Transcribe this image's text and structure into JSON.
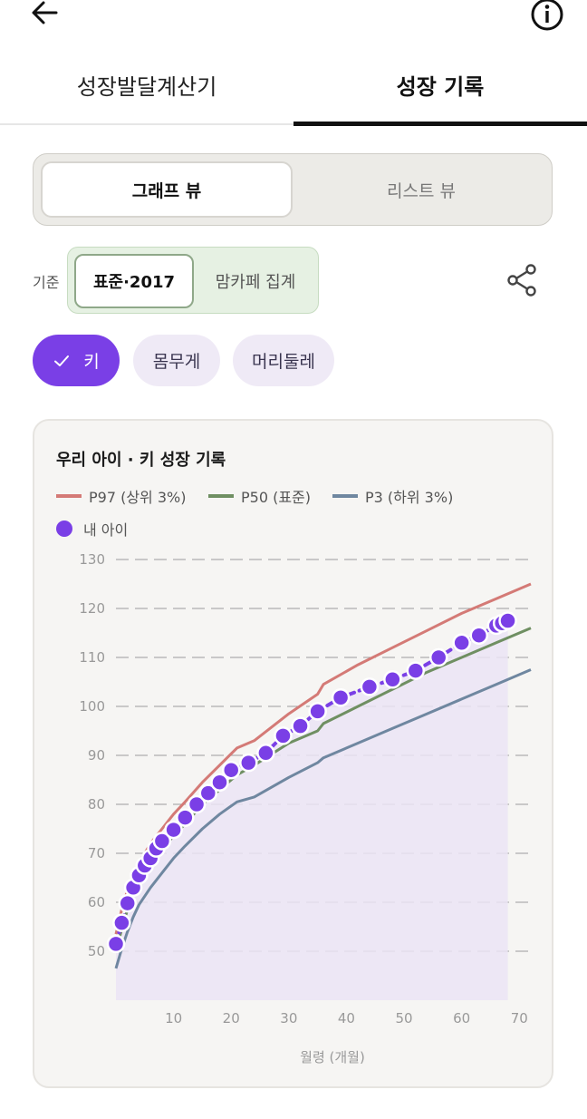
{
  "header": {
    "back_icon": "arrow-left-icon",
    "info_icon": "info-icon"
  },
  "tabs": [
    {
      "label": "성장발달계산기",
      "selected": false
    },
    {
      "label": "성장 기록",
      "selected": true
    }
  ],
  "view_toggle": {
    "graph_label": "그래프 뷰",
    "list_label": "리스트 뷰",
    "selected": "graph"
  },
  "standard": {
    "label": "기준",
    "options": [
      "표준·2017",
      "맘카페 집계"
    ],
    "selected": "표준·2017"
  },
  "metrics": {
    "height": "키",
    "weight": "몸무게",
    "head": "머리둘레",
    "selected": "height"
  },
  "colors": {
    "accent": "#7a3fe6",
    "p97": "#d47a76",
    "p50": "#6f8f62",
    "p3": "#6f87a0",
    "area": "#ebe4f5"
  },
  "chart_data": {
    "type": "line",
    "title": "우리 아이 · 키 성장 기록",
    "xlabel": "월령 (개월)",
    "ylabel": "",
    "xlim": [
      0,
      72
    ],
    "ylim": [
      40,
      130
    ],
    "x_ticks": [
      10,
      20,
      30,
      40,
      50,
      60,
      70
    ],
    "y_ticks": [
      50,
      60,
      70,
      80,
      90,
      100,
      110,
      120,
      130
    ],
    "grid": true,
    "legend_position": "top-left",
    "series": [
      {
        "name": "P97 (상위 3%)",
        "color": "#d47a76",
        "x": [
          0,
          1,
          2,
          3,
          4,
          6,
          8,
          10,
          12,
          15,
          18,
          21,
          24,
          30,
          35,
          36,
          42,
          48,
          54,
          60,
          66,
          72
        ],
        "values": [
          53.5,
          58.5,
          62.5,
          65.5,
          68,
          72,
          75,
          78,
          80.5,
          84.5,
          88,
          91.5,
          93,
          98.5,
          102.5,
          104.5,
          108.5,
          112,
          115.5,
          119,
          122,
          125
        ]
      },
      {
        "name": "P50 (표준)",
        "color": "#6f8f62",
        "x": [
          0,
          1,
          2,
          3,
          4,
          6,
          8,
          10,
          12,
          15,
          18,
          21,
          24,
          30,
          35,
          36,
          42,
          48,
          54,
          60,
          66,
          72
        ],
        "values": [
          50,
          54.5,
          58.5,
          61.5,
          64,
          68,
          71,
          73.5,
          76,
          80,
          83,
          86,
          88,
          92.5,
          95,
          96.5,
          100,
          103.5,
          107,
          110,
          113,
          116
        ]
      },
      {
        "name": "P3 (하위 3%)",
        "color": "#6f87a0",
        "x": [
          0,
          1,
          2,
          3,
          4,
          6,
          8,
          10,
          12,
          15,
          18,
          21,
          24,
          30,
          35,
          36,
          42,
          48,
          54,
          60,
          66,
          72
        ],
        "values": [
          46.5,
          50.5,
          54,
          57,
          59.5,
          63,
          66,
          69,
          71.5,
          75,
          78,
          80.5,
          81.5,
          85.5,
          88.5,
          89.5,
          92.5,
          95.5,
          98.5,
          101.5,
          104.5,
          107.5
        ]
      },
      {
        "name": "내 아이",
        "color": "#7a3fe6",
        "x": [
          0,
          1,
          2,
          3,
          4,
          5,
          6,
          7,
          8,
          10,
          12,
          14,
          16,
          18,
          20,
          23,
          26,
          29,
          32,
          35,
          39,
          44,
          48,
          52,
          56,
          60,
          63,
          66,
          67,
          68
        ],
        "values": [
          51.5,
          55.8,
          59.8,
          63,
          65.5,
          67.5,
          69,
          71,
          72.5,
          74.8,
          77.3,
          80,
          82.3,
          84.5,
          87,
          88.5,
          90.5,
          94,
          96,
          99,
          101.8,
          104,
          105.5,
          107.3,
          110,
          113,
          114.5,
          116.5,
          117,
          117.5
        ]
      }
    ]
  }
}
